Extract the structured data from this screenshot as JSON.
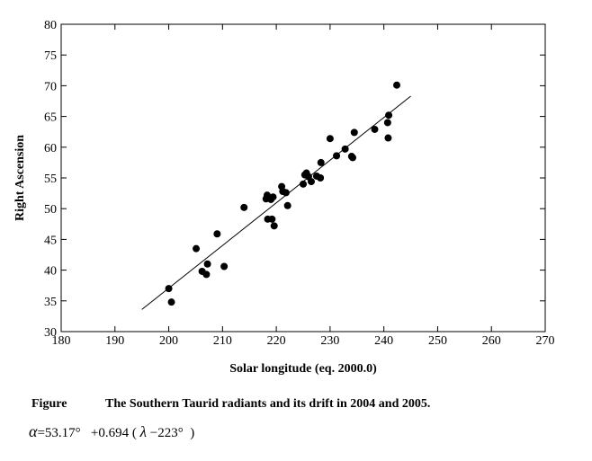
{
  "chart_data": {
    "type": "scatter",
    "title": "",
    "xlabel": "Solar longitude (eq. 2000.0)",
    "ylabel": "Right Ascension",
    "xlim": [
      180,
      270
    ],
    "ylim": [
      30,
      80
    ],
    "xticks": [
      180,
      190,
      200,
      210,
      220,
      230,
      240,
      250,
      260,
      270
    ],
    "yticks": [
      30,
      35,
      40,
      45,
      50,
      55,
      60,
      65,
      70,
      75,
      80
    ],
    "grid": false,
    "points": [
      {
        "x": 200.0,
        "y": 37.0
      },
      {
        "x": 200.5,
        "y": 34.8
      },
      {
        "x": 205.1,
        "y": 43.5
      },
      {
        "x": 206.2,
        "y": 39.8
      },
      {
        "x": 207.0,
        "y": 39.3
      },
      {
        "x": 207.2,
        "y": 41.0
      },
      {
        "x": 209.0,
        "y": 45.9
      },
      {
        "x": 210.3,
        "y": 40.6
      },
      {
        "x": 214.0,
        "y": 50.2
      },
      {
        "x": 218.1,
        "y": 51.6
      },
      {
        "x": 218.3,
        "y": 52.2
      },
      {
        "x": 218.4,
        "y": 48.3
      },
      {
        "x": 219.0,
        "y": 51.5
      },
      {
        "x": 219.2,
        "y": 48.3
      },
      {
        "x": 219.4,
        "y": 51.9
      },
      {
        "x": 219.6,
        "y": 47.2
      },
      {
        "x": 221.0,
        "y": 53.6
      },
      {
        "x": 221.2,
        "y": 52.8
      },
      {
        "x": 221.8,
        "y": 52.6
      },
      {
        "x": 222.1,
        "y": 50.5
      },
      {
        "x": 225.0,
        "y": 54.0
      },
      {
        "x": 225.3,
        "y": 55.5
      },
      {
        "x": 225.6,
        "y": 55.8
      },
      {
        "x": 226.0,
        "y": 55.2
      },
      {
        "x": 226.5,
        "y": 54.4
      },
      {
        "x": 227.5,
        "y": 55.3
      },
      {
        "x": 228.2,
        "y": 55.0
      },
      {
        "x": 228.3,
        "y": 57.5
      },
      {
        "x": 230.0,
        "y": 61.4
      },
      {
        "x": 231.2,
        "y": 58.6
      },
      {
        "x": 232.8,
        "y": 59.7
      },
      {
        "x": 234.0,
        "y": 58.5
      },
      {
        "x": 234.2,
        "y": 58.3
      },
      {
        "x": 234.5,
        "y": 62.4
      },
      {
        "x": 238.3,
        "y": 62.9
      },
      {
        "x": 240.7,
        "y": 64.0
      },
      {
        "x": 240.8,
        "y": 61.5
      },
      {
        "x": 240.9,
        "y": 65.2
      },
      {
        "x": 242.4,
        "y": 70.1
      }
    ],
    "fit_line": {
      "x": [
        195,
        245
      ],
      "y": [
        33.6,
        68.3
      ]
    }
  },
  "caption": {
    "label": "Figure",
    "text": "The Southern Taurid radiants and its drift in 2004 and 2005."
  },
  "formula": {
    "lhs": "α",
    "equals": "=53.17°",
    "coef": "+0.694 (",
    "lambda": "λ",
    "rest": "−223°",
    "close": ")"
  }
}
